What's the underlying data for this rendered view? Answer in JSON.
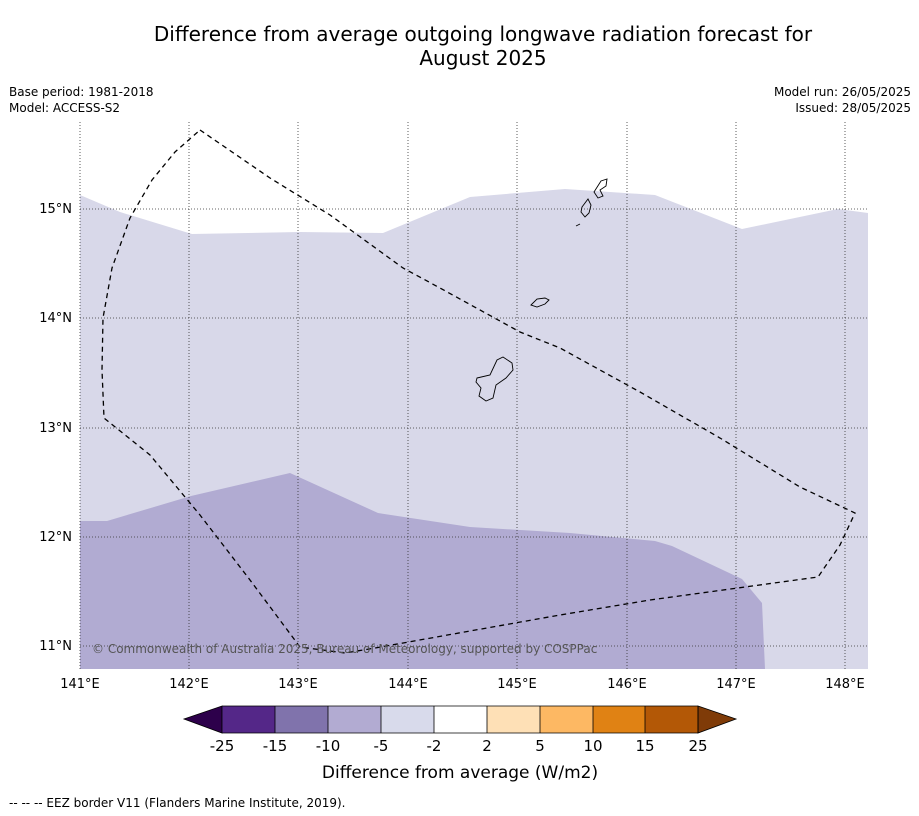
{
  "title_line1": "Difference from average outgoing longwave radiation forecast for",
  "title_line2": "August 2025",
  "meta": {
    "base_period": "Base period: 1981-2018",
    "model": "Model: ACCESS-S2",
    "model_run": "Model run: 26/05/2025",
    "issued": "Issued: 28/05/2025"
  },
  "map": {
    "lon_labels": [
      "141°E",
      "142°E",
      "143°E",
      "144°E",
      "145°E",
      "146°E",
      "147°E",
      "148°E"
    ],
    "lat_labels": [
      "15°N",
      "14°N",
      "13°N",
      "12°N",
      "11°N"
    ],
    "copyright": "© Commonwealth of Australia 2025, Bureau of Meteorology, supported by COSPPac",
    "bins": [
      {
        "range": "-10 to -5",
        "color": "#b1abd2"
      },
      {
        "range": "-5 to -2",
        "color": "#d8d8e9"
      }
    ]
  },
  "colorbar": {
    "label": "Difference from average (W/m2)",
    "ticks": [
      "-25",
      "-15",
      "-10",
      "-5",
      "-2",
      "2",
      "5",
      "10",
      "15",
      "25"
    ],
    "colors": [
      "#2d004b",
      "#542788",
      "#8073ac",
      "#b2abd2",
      "#d8daeb",
      "#ffffff",
      "#fee0b6",
      "#fdb863",
      "#e08214",
      "#b35806",
      "#7f3b08"
    ]
  },
  "footer": "--  --  -- EEZ border V11 (Flanders Marine Institute, 2019)."
}
